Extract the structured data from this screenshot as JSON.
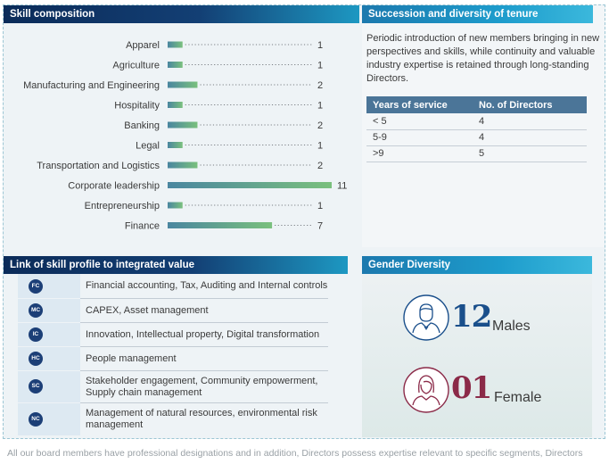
{
  "skill_composition": {
    "title": "Skill composition",
    "chart_data": {
      "type": "bar",
      "orientation": "horizontal",
      "categories": [
        "Apparel",
        "Agriculture",
        "Manufacturing and Engineering",
        "Hospitality",
        "Banking",
        "Legal",
        "Transportation and Logistics",
        "Corporate leadership",
        "Entrepreneurship",
        "Finance"
      ],
      "values": [
        1,
        1,
        2,
        1,
        2,
        1,
        2,
        11,
        1,
        7
      ],
      "value_labels": [
        "1",
        "1",
        "2",
        "1",
        "2",
        "1",
        "2",
        "11",
        "1",
        "7"
      ],
      "xlim": [
        0,
        11
      ],
      "grid": false,
      "bar_color": "#4a86a0",
      "bar_color_end": "#7ac07d"
    }
  },
  "succession": {
    "title": "Succession and diversity of tenure",
    "description": "Periodic introduction of new members bringing in new perspectives and skills, while continuity and valuable industry expertise is retained through long-standing Directors.",
    "table": {
      "headers": [
        "Years of service",
        "No. of Directors"
      ],
      "rows": [
        [
          "< 5",
          "4"
        ],
        [
          "5-9",
          "4"
        ],
        [
          ">9",
          "5"
        ]
      ]
    }
  },
  "link_profile": {
    "title": "Link of skill profile to integrated value",
    "items": [
      {
        "code": "FC",
        "text": "Financial accounting, Tax, Auditing and Internal controls"
      },
      {
        "code": "MC",
        "text": "CAPEX, Asset management"
      },
      {
        "code": "IC",
        "text": "Innovation, Intellectual property, Digital transformation"
      },
      {
        "code": "HC",
        "text": "People management"
      },
      {
        "code": "SC",
        "text": "Stakeholder engagement, Community empowerment, Supply chain management"
      },
      {
        "code": "NC",
        "text": "Management of natural resources, environmental risk management"
      }
    ]
  },
  "gender": {
    "title": "Gender Diversity",
    "male_count": "12",
    "male_label": "Males",
    "female_count": "01",
    "female_label": "Female",
    "male_color": "#1a4f8b",
    "female_color": "#8b2a48"
  },
  "footnote": "All our board members have professional designations and in addition, Directors possess expertise relevant to specific segments, Directors"
}
